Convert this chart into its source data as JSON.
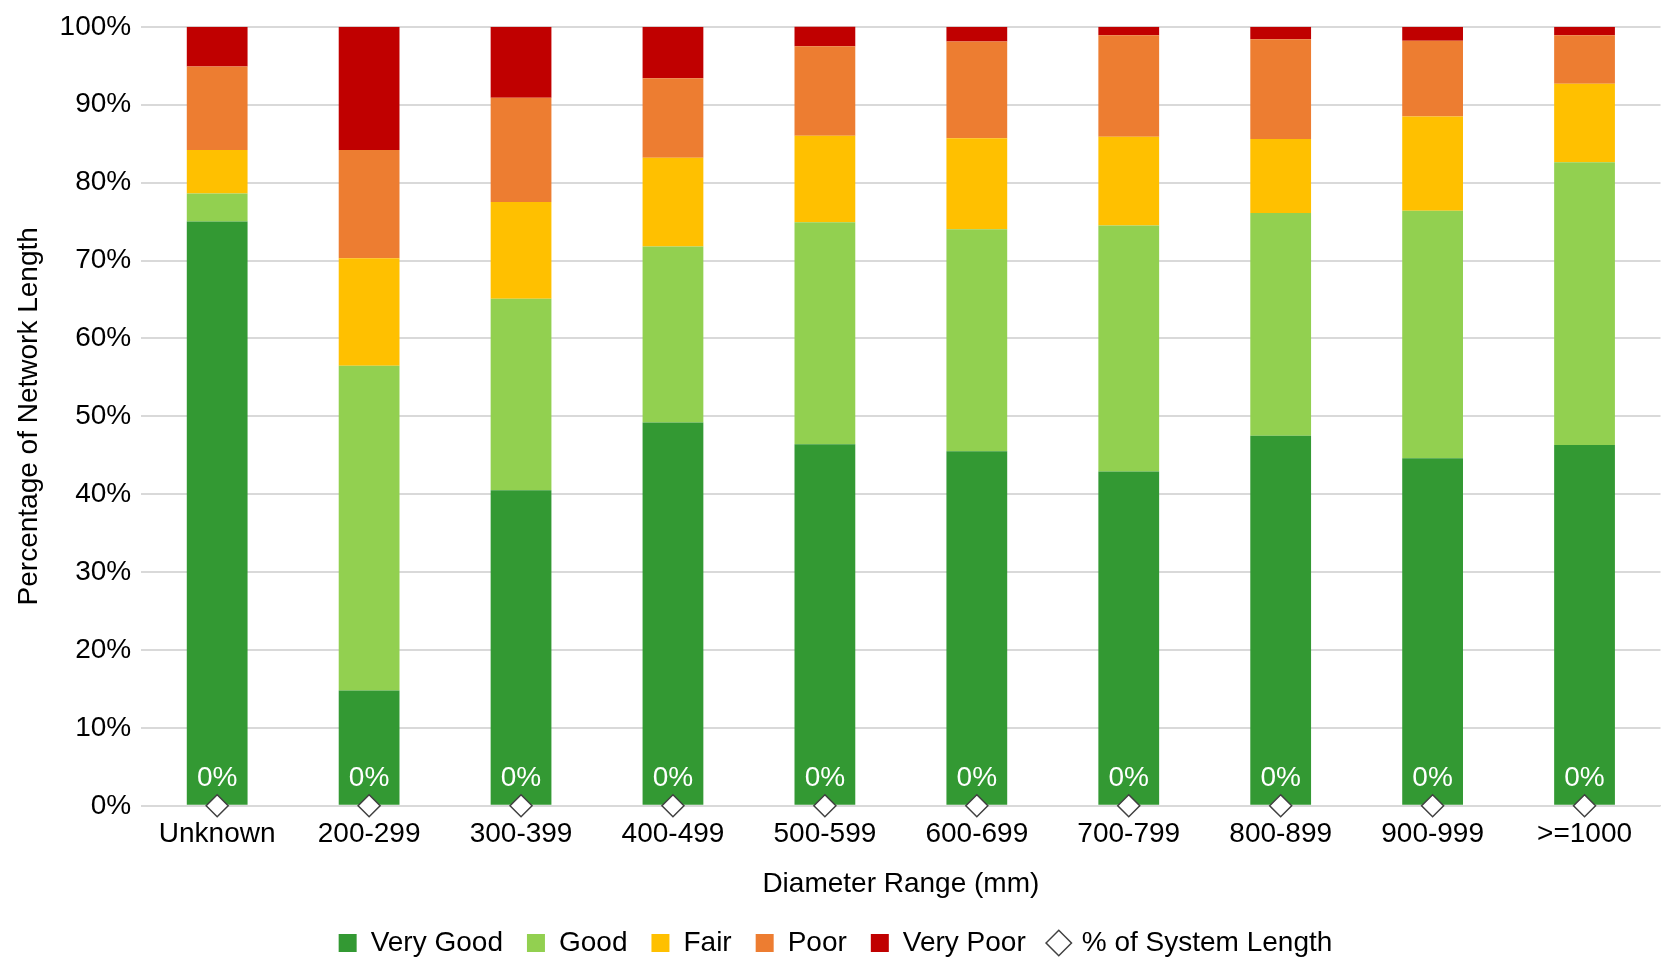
{
  "chart_data": {
    "type": "bar",
    "stacked": true,
    "xlabel": "Diameter Range (mm)",
    "ylabel": "Percentage of Network Length",
    "categories": [
      "Unknown",
      "200-299",
      "300-399",
      "400-499",
      "500-599",
      "600-699",
      "700-799",
      "800-899",
      "900-999",
      ">=1000"
    ],
    "series": [
      {
        "name": "Very Good",
        "color": "#339933",
        "values": [
          75,
          14.8,
          40.5,
          49.2,
          46.4,
          45.5,
          42.9,
          47.5,
          44.6,
          46.3
        ]
      },
      {
        "name": "Good",
        "color": "#92d050",
        "values": [
          3.6,
          41.7,
          24.6,
          22.6,
          28.5,
          28.5,
          31.6,
          28.6,
          31.8,
          36.3
        ]
      },
      {
        "name": "Fair",
        "color": "#ffc000",
        "values": [
          5.6,
          13.8,
          12.4,
          11.4,
          11.1,
          11.7,
          11.4,
          9.5,
          12.1,
          10.1
        ]
      },
      {
        "name": "Poor",
        "color": "#ed7d31",
        "values": [
          10.7,
          13.9,
          13.4,
          10.2,
          11.5,
          12.4,
          13,
          12.8,
          9.7,
          6.2
        ]
      },
      {
        "name": "Very Poor",
        "color": "#c00000",
        "values": [
          5.1,
          15.8,
          9.1,
          6.6,
          2.6,
          1.9,
          1.1,
          1.6,
          1.8,
          1.1
        ]
      },
      {
        "name": "% of System Length",
        "type": "scatter",
        "marker": "diamond",
        "color": "#ffffff",
        "x": [
          "Unknown",
          "200-299",
          "300-399",
          "400-499",
          "500-599",
          "600-699",
          "700-799",
          "800-899",
          "900-999",
          ">=1000"
        ],
        "values": [
          0,
          0,
          0,
          0,
          0,
          0,
          0,
          0,
          0,
          0
        ],
        "value_labels": [
          "0%",
          "0%",
          "0%",
          "0%",
          "0%",
          "0%",
          "0%",
          "0%",
          "0%",
          "0%"
        ]
      }
    ],
    "ylim": [
      0,
      100
    ],
    "yticks": [
      {
        "value": 0,
        "label": "0%"
      },
      {
        "value": 10,
        "label": "10%"
      },
      {
        "value": 20,
        "label": "20%"
      },
      {
        "value": 30,
        "label": "30%"
      },
      {
        "value": 40,
        "label": "40%"
      },
      {
        "value": 50,
        "label": "50%"
      },
      {
        "value": 60,
        "label": "60%"
      },
      {
        "value": 70,
        "label": "70%"
      },
      {
        "value": 80,
        "label": "80%"
      },
      {
        "value": 90,
        "label": "90%"
      },
      {
        "value": 100,
        "label": "100%"
      }
    ],
    "grid": "y",
    "legend": "bottom"
  }
}
